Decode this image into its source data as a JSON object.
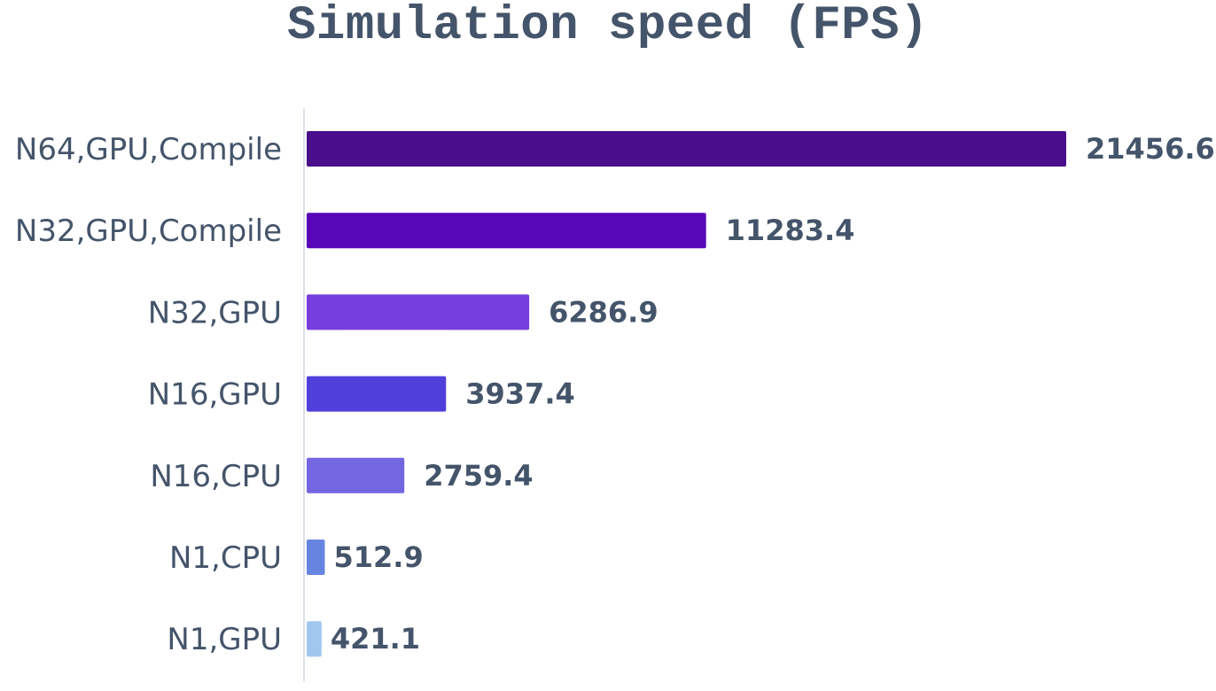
{
  "chart_data": {
    "type": "bar",
    "orientation": "horizontal",
    "title": "Simulation speed (FPS)",
    "categories": [
      "N64,GPU,Compile",
      "N32,GPU,Compile",
      "N32,GPU",
      "N16,GPU",
      "N16,CPU",
      "N1,CPU",
      "N1,GPU"
    ],
    "values": [
      21456.6,
      11283.4,
      6286.9,
      3937.4,
      2759.4,
      512.9,
      421.1
    ],
    "value_labels": [
      "21456.6",
      "11283.4",
      "6286.9",
      "3937.4",
      "2759.4",
      "512.9",
      "421.1"
    ],
    "bar_colors": [
      "#490e8c",
      "#5707b8",
      "#763ddf",
      "#513fdc",
      "#7466e0",
      "#6785e0",
      "#a2c7ef"
    ],
    "xlim": [
      0,
      21456.6
    ],
    "xlabel": "",
    "ylabel": "",
    "grid": false,
    "legend": "none"
  }
}
